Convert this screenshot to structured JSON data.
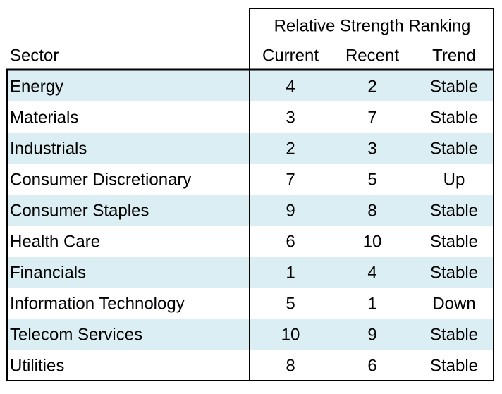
{
  "table": {
    "group_header": "Relative Strength Ranking",
    "columns": [
      "Sector",
      "Current",
      "Recent",
      "Trend"
    ],
    "rows": [
      [
        "Energy",
        4,
        2,
        "Stable"
      ],
      [
        "Materials",
        3,
        7,
        "Stable"
      ],
      [
        "Industrials",
        2,
        3,
        "Stable"
      ],
      [
        "Consumer Discretionary",
        7,
        5,
        "Up"
      ],
      [
        "Consumer Staples",
        9,
        8,
        "Stable"
      ],
      [
        "Health Care",
        6,
        10,
        "Stable"
      ],
      [
        "Financials",
        1,
        4,
        "Stable"
      ],
      [
        "Information Technology",
        5,
        1,
        "Down"
      ],
      [
        "Telecom Services",
        10,
        9,
        "Stable"
      ],
      [
        "Utilities",
        8,
        6,
        "Stable"
      ]
    ]
  }
}
